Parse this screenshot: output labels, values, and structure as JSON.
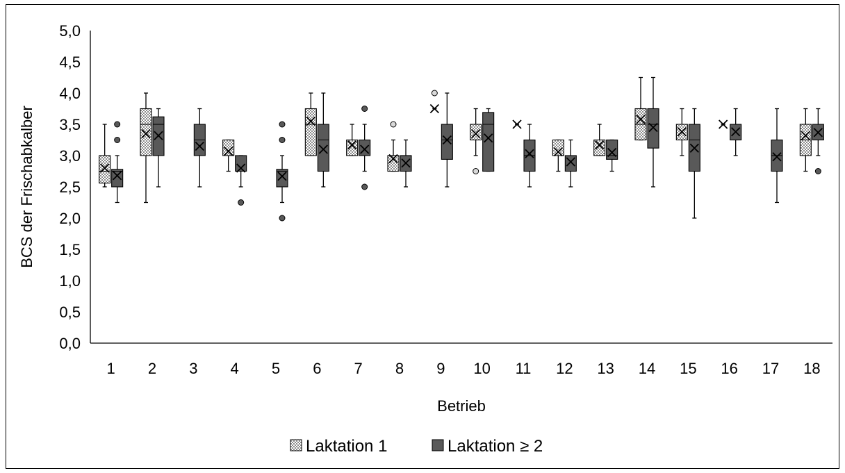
{
  "chart_data": {
    "type": "box",
    "xlabel": "Betrieb",
    "ylabel": "BCS der Frischabkalber",
    "ylim": [
      0,
      5
    ],
    "yticks": [
      "0,0",
      "0,5",
      "1,0",
      "1,5",
      "2,0",
      "2,5",
      "3,0",
      "3,5",
      "4,0",
      "4,5",
      "5,0"
    ],
    "categories": [
      "1",
      "2",
      "3",
      "4",
      "5",
      "6",
      "7",
      "8",
      "9",
      "10",
      "11",
      "12",
      "13",
      "14",
      "15",
      "16",
      "17",
      "18"
    ],
    "legend_position": "bottom",
    "series": [
      {
        "name": "Laktation 1",
        "color": "#d9d9d9",
        "pattern": "dotted",
        "boxes": [
          {
            "min": 2.5,
            "q1": 2.56,
            "median": 2.75,
            "q3": 3.0,
            "max": 3.5,
            "mean": 2.8,
            "outliers": []
          },
          {
            "min": 2.25,
            "q1": 3.0,
            "median": 3.5,
            "q3": 3.75,
            "max": 4.0,
            "mean": 3.35,
            "outliers": []
          },
          null,
          {
            "min": 2.75,
            "q1": 3.0,
            "median": 3.0,
            "q3": 3.25,
            "max": 3.25,
            "mean": 3.07,
            "outliers": []
          },
          null,
          {
            "min": 3.0,
            "q1": 3.0,
            "median": 3.5,
            "q3": 3.75,
            "max": 4.0,
            "mean": 3.55,
            "outliers": []
          },
          {
            "min": 3.0,
            "q1": 3.0,
            "median": 3.25,
            "q3": 3.25,
            "max": 3.5,
            "mean": 3.17,
            "outliers": []
          },
          {
            "min": 2.75,
            "q1": 2.75,
            "median": 3.0,
            "q3": 3.0,
            "max": 3.25,
            "mean": 2.95,
            "outliers": [
              3.5
            ]
          },
          {
            "min": 3.75,
            "q1": 3.75,
            "median": 3.75,
            "q3": 3.75,
            "max": 3.75,
            "mean": 3.75,
            "outliers": [
              4.0
            ]
          },
          {
            "min": 3.0,
            "q1": 3.25,
            "median": 3.5,
            "q3": 3.5,
            "max": 3.75,
            "mean": 3.35,
            "outliers": [
              2.75
            ]
          },
          {
            "min": 3.5,
            "q1": 3.5,
            "median": 3.5,
            "q3": 3.5,
            "max": 3.5,
            "mean": 3.5,
            "outliers": []
          },
          {
            "min": 2.75,
            "q1": 3.0,
            "median": 3.25,
            "q3": 3.25,
            "max": 3.25,
            "mean": 3.06,
            "outliers": []
          },
          {
            "min": 3.0,
            "q1": 3.0,
            "median": 3.25,
            "q3": 3.25,
            "max": 3.5,
            "mean": 3.17,
            "outliers": []
          },
          {
            "min": 3.25,
            "q1": 3.25,
            "median": 3.5,
            "q3": 3.75,
            "max": 4.25,
            "mean": 3.58,
            "outliers": []
          },
          {
            "min": 3.0,
            "q1": 3.25,
            "median": 3.5,
            "q3": 3.5,
            "max": 3.75,
            "mean": 3.38,
            "outliers": []
          },
          {
            "min": 3.5,
            "q1": 3.5,
            "median": 3.5,
            "q3": 3.5,
            "max": 3.5,
            "mean": 3.5,
            "outliers": []
          },
          null,
          {
            "min": 2.75,
            "q1": 3.0,
            "median": 3.25,
            "q3": 3.5,
            "max": 3.75,
            "mean": 3.32,
            "outliers": []
          }
        ]
      },
      {
        "name": "Laktation ≥ 2",
        "color": "#595959",
        "pattern": "solid",
        "boxes": [
          {
            "min": 2.25,
            "q1": 2.5,
            "median": 2.75,
            "q3": 2.78,
            "max": 3.0,
            "mean": 2.68,
            "outliers": [
              3.5,
              3.25
            ]
          },
          {
            "min": 2.5,
            "q1": 3.0,
            "median": 3.5,
            "q3": 3.62,
            "max": 3.75,
            "mean": 3.32,
            "outliers": []
          },
          {
            "min": 2.5,
            "q1": 3.0,
            "median": 3.25,
            "q3": 3.5,
            "max": 3.75,
            "mean": 3.15,
            "outliers": []
          },
          {
            "min": 2.5,
            "q1": 2.75,
            "median": 2.75,
            "q3": 3.0,
            "max": 3.0,
            "mean": 2.8,
            "outliers": [
              2.25
            ]
          },
          {
            "min": 2.25,
            "q1": 2.5,
            "median": 2.75,
            "q3": 2.78,
            "max": 3.0,
            "mean": 2.67,
            "outliers": [
              3.5,
              3.25,
              2.0
            ]
          },
          {
            "min": 2.5,
            "q1": 2.75,
            "median": 3.25,
            "q3": 3.5,
            "max": 4.0,
            "mean": 3.1,
            "outliers": []
          },
          {
            "min": 2.75,
            "q1": 3.0,
            "median": 3.25,
            "q3": 3.25,
            "max": 3.5,
            "mean": 3.1,
            "outliers": [
              3.75,
              2.5
            ]
          },
          {
            "min": 2.5,
            "q1": 2.75,
            "median": 3.0,
            "q3": 3.0,
            "max": 3.25,
            "mean": 2.88,
            "outliers": []
          },
          {
            "min": 2.5,
            "q1": 2.94,
            "median": 3.25,
            "q3": 3.5,
            "max": 4.0,
            "mean": 3.25,
            "outliers": []
          },
          {
            "min": 2.75,
            "q1": 2.75,
            "median": 3.5,
            "q3": 3.69,
            "max": 3.75,
            "mean": 3.28,
            "outliers": []
          },
          {
            "min": 2.5,
            "q1": 2.75,
            "median": 3.0,
            "q3": 3.25,
            "max": 3.5,
            "mean": 3.03,
            "outliers": []
          },
          {
            "min": 2.5,
            "q1": 2.75,
            "median": 3.0,
            "q3": 3.0,
            "max": 3.25,
            "mean": 2.9,
            "outliers": []
          },
          {
            "min": 2.75,
            "q1": 2.94,
            "median": 3.0,
            "q3": 3.25,
            "max": 3.25,
            "mean": 3.05,
            "outliers": []
          },
          {
            "min": 2.5,
            "q1": 3.12,
            "median": 3.5,
            "q3": 3.75,
            "max": 4.25,
            "mean": 3.45,
            "outliers": []
          },
          {
            "min": 2.0,
            "q1": 2.75,
            "median": 3.25,
            "q3": 3.5,
            "max": 3.75,
            "mean": 3.12,
            "outliers": []
          },
          {
            "min": 3.0,
            "q1": 3.25,
            "median": 3.5,
            "q3": 3.5,
            "max": 3.75,
            "mean": 3.38,
            "outliers": []
          },
          {
            "min": 2.25,
            "q1": 2.75,
            "median": 3.0,
            "q3": 3.25,
            "max": 3.75,
            "mean": 2.98,
            "outliers": []
          },
          {
            "min": 3.0,
            "q1": 3.25,
            "median": 3.5,
            "q3": 3.5,
            "max": 3.75,
            "mean": 3.37,
            "outliers": [
              2.75
            ]
          }
        ]
      }
    ]
  }
}
